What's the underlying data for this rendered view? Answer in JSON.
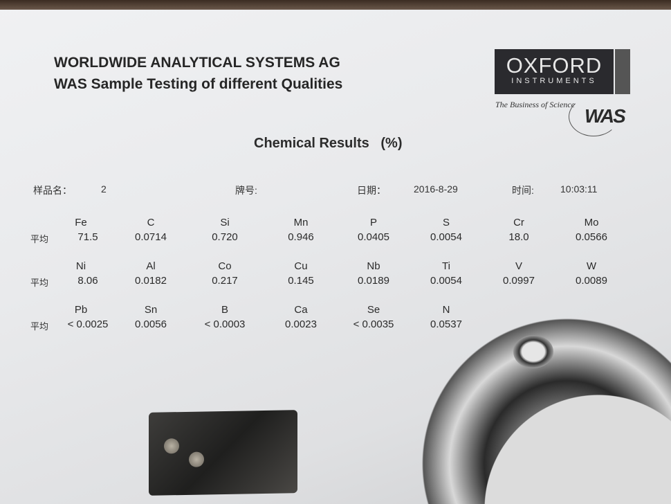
{
  "header": {
    "company": "WORLDWIDE ANALYTICAL SYSTEMS AG",
    "subtitle": "WAS Sample Testing of different Qualities"
  },
  "logo": {
    "brand": "OXFORD",
    "sub": "INSTRUMENTS",
    "tagline": "The Business of Science",
    "was": "WAS"
  },
  "heading": "Chemical Results   (%)",
  "meta": {
    "sample_label": "样品名：",
    "sample_value": "2",
    "grade_label": "牌号:",
    "date_label": "日期：",
    "date_value": "2016-8-29",
    "time_label": "时间:",
    "time_value": "10:03:11"
  },
  "avg_label": "平均",
  "rows": [
    {
      "elements": [
        "Fe",
        "C",
        "Si",
        "Mn",
        "P",
        "S",
        "Cr",
        "Mo"
      ],
      "values": [
        "71.5",
        "0.0714",
        "0.720",
        "0.946",
        "0.0405",
        "0.0054",
        "18.0",
        "0.0566"
      ]
    },
    {
      "elements": [
        "Ni",
        "Al",
        "Co",
        "Cu",
        "Nb",
        "Ti",
        "V",
        "W"
      ],
      "values": [
        "8.06",
        "0.0182",
        "0.217",
        "0.145",
        "0.0189",
        "0.0054",
        "0.0997",
        "0.0089"
      ]
    },
    {
      "elements": [
        "Pb",
        "Sn",
        "B",
        "Ca",
        "Se",
        "N"
      ],
      "values": [
        "< 0.0025",
        "0.0056",
        "< 0.0003",
        "0.0023",
        "< 0.0035",
        "0.0537"
      ]
    }
  ]
}
